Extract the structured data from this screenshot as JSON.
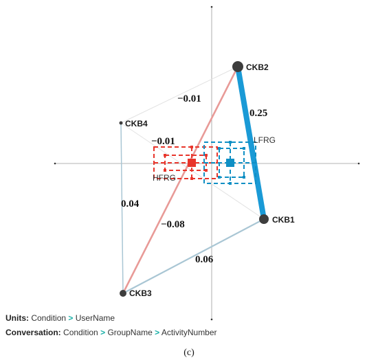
{
  "nodes": {
    "ckb1": {
      "label": "CKB1"
    },
    "ckb2": {
      "label": "CKB2"
    },
    "ckb3": {
      "label": "CKB3"
    },
    "ckb4": {
      "label": "CKB4"
    }
  },
  "edges": {
    "ckb2_ckb1": {
      "value": "0.25",
      "color": "#1a9ad6"
    },
    "ckb2_ckb3": {
      "value": "−0.08",
      "color": "#e89a97"
    },
    "ckb2_ckb4": {
      "value": "−0.01",
      "color": "#dddddd"
    },
    "ckb4_ckb1": {
      "value": "−0.01",
      "color": "#dddddd"
    },
    "ckb4_ckb3": {
      "value": "0.04",
      "color": "#a9c6d4"
    },
    "ckb3_ckb1": {
      "value": "0.06",
      "color": "#a9c6d4"
    }
  },
  "groups": {
    "hfrg": {
      "label": "HFRG",
      "color": "#e8352b"
    },
    "lfrg": {
      "label": "LFRG",
      "color": "#0f8fc4"
    }
  },
  "footer": {
    "units_key": "Units:",
    "units_path": [
      "Condition",
      "UserName"
    ],
    "conversation_key": "Conversation:",
    "conversation_path": [
      "Condition",
      "GroupName",
      "ActivityNumber"
    ],
    "separator": ">"
  },
  "caption": "(c)"
}
